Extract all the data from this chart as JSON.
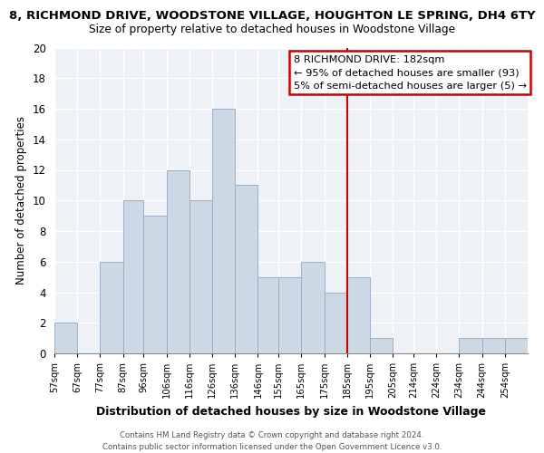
{
  "title": "8, RICHMOND DRIVE, WOODSTONE VILLAGE, HOUGHTON LE SPRING, DH4 6TY",
  "subtitle": "Size of property relative to detached houses in Woodstone Village",
  "xlabel": "Distribution of detached houses by size in Woodstone Village",
  "ylabel": "Number of detached properties",
  "footer_line1": "Contains HM Land Registry data © Crown copyright and database right 2024.",
  "footer_line2": "Contains public sector information licensed under the Open Government Licence v3.0.",
  "bar_labels": [
    "57sqm",
    "67sqm",
    "77sqm",
    "87sqm",
    "96sqm",
    "106sqm",
    "116sqm",
    "126sqm",
    "136sqm",
    "146sqm",
    "155sqm",
    "165sqm",
    "175sqm",
    "185sqm",
    "195sqm",
    "205sqm",
    "214sqm",
    "224sqm",
    "234sqm",
    "244sqm",
    "254sqm"
  ],
  "bar_heights": [
    2,
    0,
    6,
    10,
    9,
    12,
    10,
    16,
    11,
    5,
    5,
    6,
    4,
    5,
    1,
    0,
    0,
    0,
    1,
    1,
    1
  ],
  "bar_color": "#ccd9e5",
  "bar_edge_color": "#9ab0c4",
  "ylim": [
    0,
    20
  ],
  "yticks": [
    0,
    2,
    4,
    6,
    8,
    10,
    12,
    14,
    16,
    18,
    20
  ],
  "vline_color": "#cc0000",
  "annotation_title": "8 RICHMOND DRIVE: 182sqm",
  "annotation_line1": "← 95% of detached houses are smaller (93)",
  "annotation_line2": "5% of semi-detached houses are larger (5) →",
  "annotation_box_color": "#ffffff",
  "annotation_box_edge": "#cc0000",
  "bin_edges": [
    57,
    67,
    77,
    87,
    96,
    106,
    116,
    126,
    136,
    146,
    155,
    165,
    175,
    185,
    195,
    205,
    214,
    224,
    234,
    244,
    254
  ],
  "vline_x_label": "185sqm"
}
